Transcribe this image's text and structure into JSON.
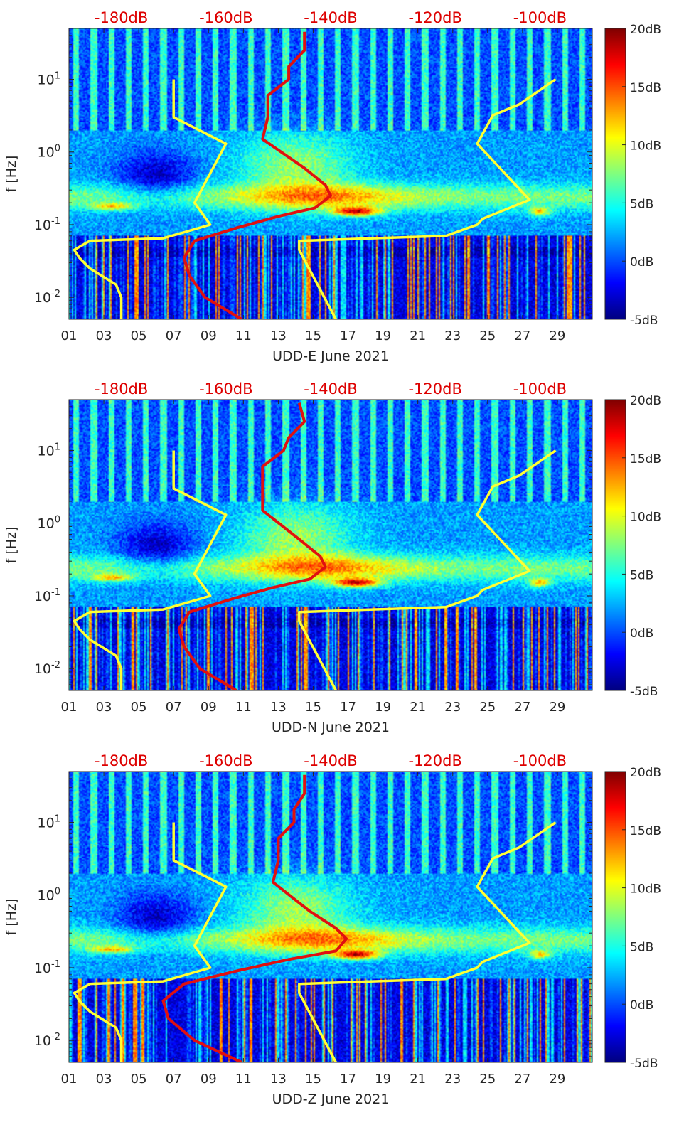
{
  "figure": {
    "colors": {
      "reference_curves": "#ffff33",
      "psd_curve": "#e01010",
      "top_axis_text": "#dd0000"
    },
    "colormap": [
      "#00007f",
      "#0000ff",
      "#007fff",
      "#00ffff",
      "#7fff7f",
      "#ffff00",
      "#ff7f00",
      "#ff0000",
      "#7f0000"
    ]
  },
  "chart_data": [
    {
      "type": "heatmap",
      "xlabel": "UDD-E June 2021",
      "ylabel": "f [Hz]",
      "x_ticks": [
        "01",
        "03",
        "05",
        "07",
        "09",
        "11",
        "13",
        "15",
        "17",
        "19",
        "21",
        "23",
        "25",
        "27",
        "29"
      ],
      "y_ticks": [
        "10-2",
        "10-1",
        "100",
        "101"
      ],
      "y_scale": "log",
      "ylim": [
        0.005,
        50
      ],
      "xlim": [
        1,
        31
      ],
      "top_axis_ticks": [
        "-180dB",
        "-160dB",
        "-140dB",
        "-120dB",
        "-100dB"
      ],
      "top_axis_range_dB": [
        -190,
        -90
      ],
      "colorbar_ticks": [
        "20dB",
        "15dB",
        "10dB",
        "5dB",
        "0dB",
        "-5dB"
      ],
      "colorbar_range_dB": [
        -5,
        20
      ],
      "series": [
        {
          "curve": "low-noise model",
          "x_dB": [
            -180,
            -180,
            -181,
            -186,
            -188,
            -189,
            -186,
            -172,
            -163,
            -166,
            -160,
            -170,
            -170
          ],
          "f_hz": [
            0.005,
            0.01,
            0.015,
            0.025,
            0.035,
            0.045,
            0.06,
            0.065,
            0.1,
            0.2,
            1.3,
            3,
            10
          ]
        },
        {
          "curve": "high-noise model",
          "x_dB": [
            -139,
            -146,
            -146,
            -132,
            -118,
            -112,
            -111,
            -102,
            -112,
            -109,
            -104,
            -97
          ],
          "f_hz": [
            0.005,
            0.045,
            0.06,
            0.065,
            0.07,
            0.1,
            0.12,
            0.22,
            1.3,
            3.2,
            4.5,
            10
          ]
        },
        {
          "curve": "median PSD",
          "x_dB": [
            -157,
            -164,
            -167,
            -168,
            -166,
            -158,
            -150,
            -143,
            -140,
            -141,
            -145,
            -153,
            -152,
            -152,
            -148,
            -148,
            -145,
            -145
          ],
          "f_hz": [
            0.005,
            0.01,
            0.02,
            0.035,
            0.06,
            0.09,
            0.13,
            0.17,
            0.25,
            0.35,
            0.6,
            1.5,
            3,
            6,
            10,
            15,
            25,
            45
          ]
        }
      ]
    },
    {
      "type": "heatmap",
      "xlabel": "UDD-N June 2021",
      "ylabel": "f [Hz]",
      "x_ticks": [
        "01",
        "03",
        "05",
        "07",
        "09",
        "11",
        "13",
        "15",
        "17",
        "19",
        "21",
        "23",
        "25",
        "27",
        "29"
      ],
      "y_ticks": [
        "10-2",
        "10-1",
        "100",
        "101"
      ],
      "y_scale": "log",
      "ylim": [
        0.005,
        50
      ],
      "xlim": [
        1,
        31
      ],
      "top_axis_ticks": [
        "-180dB",
        "-160dB",
        "-140dB",
        "-120dB",
        "-100dB"
      ],
      "top_axis_range_dB": [
        -190,
        -90
      ],
      "colorbar_ticks": [
        "20dB",
        "15dB",
        "10dB",
        "5dB",
        "0dB",
        "-5dB"
      ],
      "colorbar_range_dB": [
        -5,
        20
      ],
      "series": [
        {
          "curve": "low-noise model",
          "x_dB": [
            -180,
            -180,
            -181,
            -186,
            -188,
            -189,
            -186,
            -172,
            -163,
            -166,
            -160,
            -170,
            -170
          ],
          "f_hz": [
            0.005,
            0.01,
            0.015,
            0.025,
            0.035,
            0.045,
            0.06,
            0.065,
            0.1,
            0.2,
            1.3,
            3,
            10
          ]
        },
        {
          "curve": "high-noise model",
          "x_dB": [
            -139,
            -146,
            -146,
            -132,
            -118,
            -112,
            -111,
            -102,
            -112,
            -109,
            -104,
            -97
          ],
          "f_hz": [
            0.005,
            0.045,
            0.06,
            0.065,
            0.07,
            0.1,
            0.12,
            0.22,
            1.3,
            3.2,
            4.5,
            10
          ]
        },
        {
          "curve": "median PSD",
          "x_dB": [
            -158,
            -165,
            -168,
            -169,
            -167,
            -159,
            -151,
            -144,
            -141,
            -142,
            -146,
            -153,
            -153,
            -153,
            -149,
            -148,
            -145,
            -146
          ],
          "f_hz": [
            0.005,
            0.01,
            0.02,
            0.035,
            0.06,
            0.09,
            0.13,
            0.17,
            0.25,
            0.35,
            0.6,
            1.5,
            3,
            6,
            10,
            15,
            25,
            45
          ]
        }
      ]
    },
    {
      "type": "heatmap",
      "xlabel": "UDD-Z June 2021",
      "ylabel": "f [Hz]",
      "x_ticks": [
        "01",
        "03",
        "05",
        "07",
        "09",
        "11",
        "13",
        "15",
        "17",
        "19",
        "21",
        "23",
        "25",
        "27",
        "29"
      ],
      "y_ticks": [
        "10-2",
        "10-1",
        "100",
        "101"
      ],
      "y_scale": "log",
      "ylim": [
        0.005,
        50
      ],
      "xlim": [
        1,
        31
      ],
      "top_axis_ticks": [
        "-180dB",
        "-160dB",
        "-140dB",
        "-120dB",
        "-100dB"
      ],
      "top_axis_range_dB": [
        -190,
        -90
      ],
      "colorbar_ticks": [
        "20dB",
        "15dB",
        "10dB",
        "5dB",
        "0dB",
        "-5dB"
      ],
      "colorbar_range_dB": [
        -5,
        20
      ],
      "series": [
        {
          "curve": "low-noise model",
          "x_dB": [
            -180,
            -180,
            -181,
            -186,
            -188,
            -189,
            -186,
            -172,
            -163,
            -166,
            -160,
            -170,
            -170
          ],
          "f_hz": [
            0.005,
            0.01,
            0.015,
            0.025,
            0.035,
            0.045,
            0.06,
            0.065,
            0.1,
            0.2,
            1.3,
            3,
            10
          ]
        },
        {
          "curve": "high-noise model",
          "x_dB": [
            -139,
            -146,
            -146,
            -132,
            -118,
            -112,
            -111,
            -102,
            -112,
            -109,
            -104,
            -97
          ],
          "f_hz": [
            0.005,
            0.045,
            0.06,
            0.065,
            0.07,
            0.1,
            0.12,
            0.22,
            1.3,
            3.2,
            4.5,
            10
          ]
        },
        {
          "curve": "median PSD",
          "x_dB": [
            -157,
            -166,
            -171,
            -172,
            -168,
            -158,
            -148,
            -139,
            -137,
            -139,
            -144,
            -151,
            -150,
            -150,
            -147,
            -147,
            -145,
            -145
          ],
          "f_hz": [
            0.005,
            0.01,
            0.02,
            0.035,
            0.06,
            0.09,
            0.13,
            0.17,
            0.25,
            0.35,
            0.6,
            1.5,
            3,
            6,
            10,
            15,
            25,
            45
          ]
        }
      ]
    }
  ]
}
